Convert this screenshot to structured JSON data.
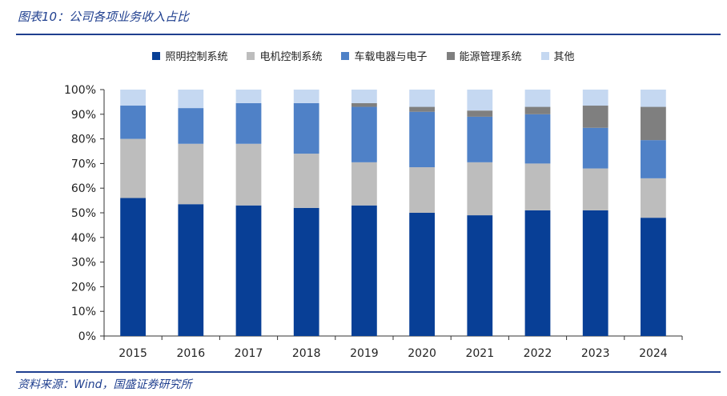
{
  "header": {
    "title": "图表10：公司各项业务收入占比"
  },
  "footer": {
    "source": "资料来源：Wind，国盛证券研究所"
  },
  "chart_data": {
    "type": "bar",
    "stacked": true,
    "categories": [
      "2015",
      "2016",
      "2017",
      "2018",
      "2019",
      "2020",
      "2021",
      "2022",
      "2023",
      "2024"
    ],
    "ylim": [
      0,
      100
    ],
    "yticks": [
      0,
      10,
      20,
      30,
      40,
      50,
      60,
      70,
      80,
      90,
      100
    ],
    "ytick_format": "%",
    "legend_position": "top",
    "series": [
      {
        "name": "照明控制系统",
        "color": "#083f96",
        "values": [
          56,
          53.5,
          53,
          52,
          53,
          50,
          49,
          51,
          51,
          48
        ]
      },
      {
        "name": "电机控制系统",
        "color": "#bdbdbd",
        "values": [
          24,
          24.5,
          25,
          22,
          17.5,
          18.5,
          21.5,
          19,
          17,
          16
        ]
      },
      {
        "name": "车载电器与电子",
        "color": "#4f81c7",
        "values": [
          13.5,
          14.5,
          16.5,
          20.5,
          22.5,
          22.5,
          18.5,
          20,
          16.5,
          15.5
        ]
      },
      {
        "name": "能源管理系统",
        "color": "#7f7f7f",
        "values": [
          0,
          0,
          0,
          0,
          1.5,
          2,
          2.5,
          3,
          9,
          13.5
        ]
      },
      {
        "name": "其他",
        "color": "#c5d8f1",
        "values": [
          6.5,
          7.5,
          5.5,
          5.5,
          5.5,
          7,
          8.5,
          7,
          6.5,
          7
        ]
      }
    ]
  }
}
